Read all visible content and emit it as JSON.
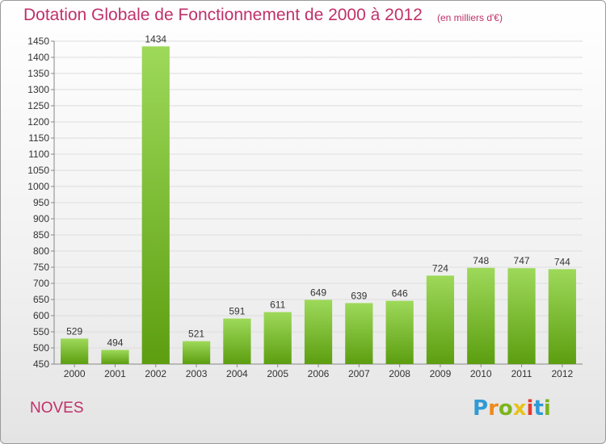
{
  "header": {
    "title": "Dotation Globale de Fonctionnement de 2000 à 2012",
    "subtitle": "(en milliers d'€)"
  },
  "footer": {
    "city": "NOVES",
    "logo_letters": [
      "P",
      "r",
      "o",
      "x",
      "i",
      "t",
      "i"
    ],
    "logo_colors": [
      "#2f9ad6",
      "#f08a1c",
      "#7cb51e",
      "#e8c21b",
      "#e53a2e",
      "#2f9ad6",
      "#7cb51e"
    ]
  },
  "chart_data": {
    "type": "bar",
    "categories": [
      "2000",
      "2001",
      "2002",
      "2003",
      "2004",
      "2005",
      "2006",
      "2007",
      "2008",
      "2009",
      "2010",
      "2011",
      "2012"
    ],
    "values": [
      529,
      494,
      1434,
      521,
      591,
      611,
      649,
      639,
      646,
      724,
      748,
      747,
      744
    ],
    "data_labels": [
      "529",
      "494",
      "1434",
      "521",
      "591",
      "611",
      "649",
      "639",
      "646",
      "724",
      "748",
      "747",
      "744"
    ],
    "ylim": [
      450,
      1450
    ],
    "yticks": [
      450,
      500,
      550,
      600,
      650,
      700,
      750,
      800,
      850,
      900,
      950,
      1000,
      1050,
      1100,
      1150,
      1200,
      1250,
      1300,
      1350,
      1400,
      1450
    ],
    "grid": true,
    "bar_color_top": "#9ed95a",
    "bar_color_bottom": "#5c9e10",
    "grid_color": "#dddddd",
    "axis_color": "#888888"
  }
}
